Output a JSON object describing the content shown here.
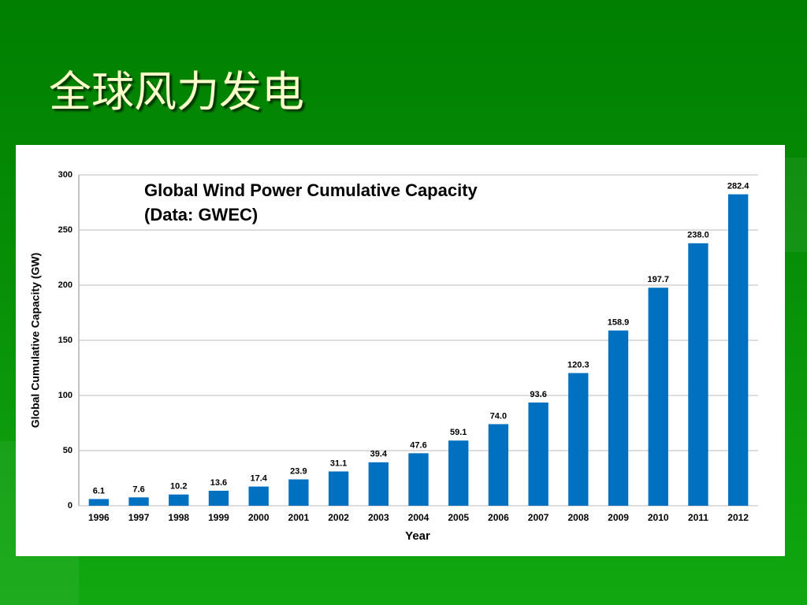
{
  "title": "全球风力发电",
  "chart_data": {
    "type": "bar",
    "title": "Global Wind Power Cumulative Capacity",
    "subtitle": "(Data: GWEC)",
    "x_label": "Year",
    "y_label": "Global Cumulative Capacity (GW)",
    "categories": [
      "1996",
      "1997",
      "1998",
      "1999",
      "2000",
      "2001",
      "2002",
      "2003",
      "2004",
      "2005",
      "2006",
      "2007",
      "2008",
      "2009",
      "2010",
      "2011",
      "2012"
    ],
    "values": [
      6.1,
      7.6,
      10.2,
      13.6,
      17.4,
      23.9,
      31.1,
      39.4,
      47.6,
      59.1,
      74,
      93.6,
      120.3,
      158.9,
      197.7,
      238,
      282.4
    ],
    "value_labels": [
      "6.1",
      "7.6",
      "10.2",
      "13.6",
      "17.4",
      "23.9",
      "31.1",
      "39.4",
      "47.6",
      "59.1",
      "74.0",
      "93.6",
      "120.3",
      "158.9",
      "197.7",
      "238.0",
      "282.4"
    ],
    "color": "#0070c0",
    "ylim": [
      0,
      300
    ],
    "yticks": [
      0,
      50,
      100,
      150,
      200,
      250,
      300
    ],
    "grid": true
  }
}
